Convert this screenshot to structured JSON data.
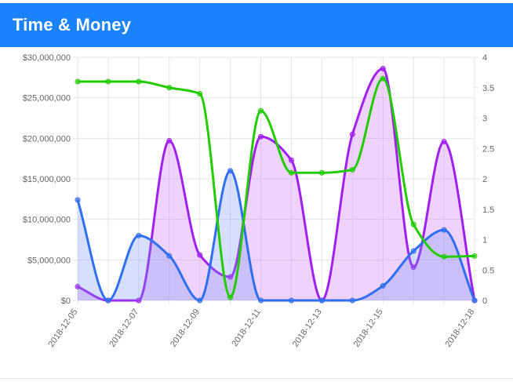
{
  "header": {
    "title": "Time & Money"
  },
  "colors": {
    "header_bg": "#1a82fb",
    "grid": "#e6e6e6",
    "tick_text": "#666666"
  },
  "chart_data": {
    "type": "area",
    "x": [
      "2018-12-05",
      "2018-12-06",
      "2018-12-07",
      "2018-12-08",
      "2018-12-09",
      "2018-12-10",
      "2018-12-11",
      "2018-12-12",
      "2018-12-13",
      "2018-12-14",
      "2018-12-15",
      "2018-12-16",
      "2018-12-17",
      "2018-12-18"
    ],
    "x_tick_labels": [
      "2018-12-05",
      "2018-12-07",
      "2018-12-09",
      "2018-12-11",
      "2018-12-13",
      "2018-12-15",
      "2018-12-18"
    ],
    "y_left": {
      "min": 0,
      "max": 30000000,
      "ticks": [
        "$0",
        "$5,000,000",
        "$10,000,000",
        "$15,000,000",
        "$20,000,000",
        "$25,000,000",
        "$30,000,000"
      ]
    },
    "y_right": {
      "min": 0,
      "max": 4,
      "ticks": [
        "0",
        "0.5",
        "1",
        "1.5",
        "2",
        "2.5",
        "3",
        "3.5",
        "4"
      ]
    },
    "grid": true,
    "series": [
      {
        "axis": "left",
        "color": "#a020f0",
        "fill": "rgba(205,120,245,0.33)",
        "values": [
          1700000,
          0,
          0,
          19700000,
          5600000,
          2900000,
          20200000,
          17300000,
          0,
          20500000,
          28600000,
          4100000,
          19600000,
          0
        ]
      },
      {
        "axis": "left",
        "color": "#2f6ff0",
        "fill": "rgba(120,150,245,0.30)",
        "values": [
          12400000,
          0,
          8000000,
          5500000,
          0,
          16000000,
          0,
          0,
          0,
          0,
          1800000,
          6100000,
          8700000,
          0
        ]
      },
      {
        "axis": "right",
        "color": "#22cc00",
        "fill": "none",
        "values": [
          3.6,
          3.6,
          3.6,
          3.5,
          3.4,
          0.05,
          3.12,
          2.1,
          2.1,
          2.15,
          3.65,
          1.25,
          0.72,
          0.73
        ]
      }
    ]
  }
}
